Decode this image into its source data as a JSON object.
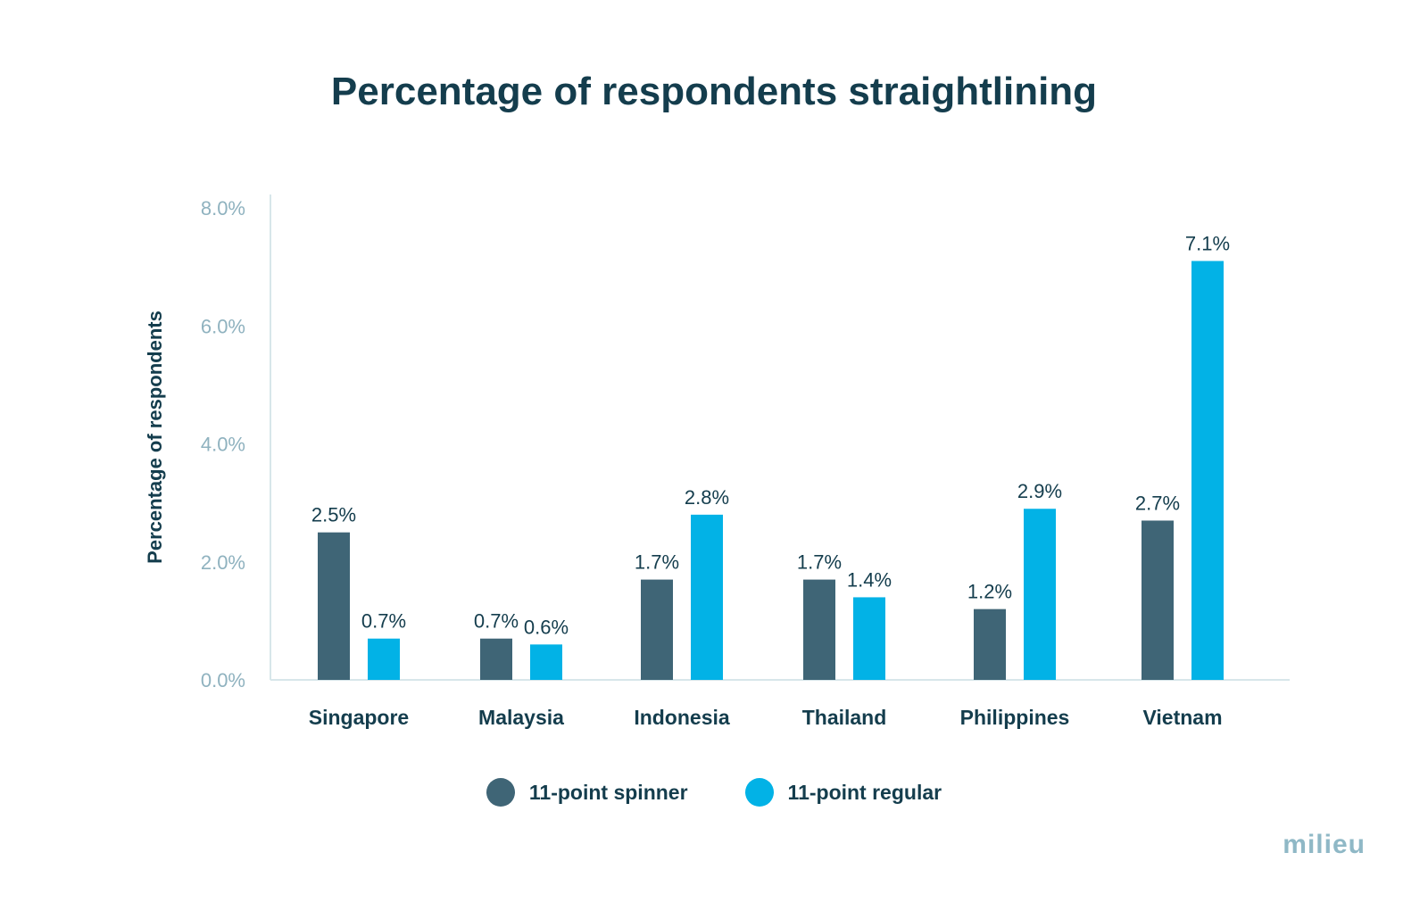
{
  "chart_data": {
    "type": "bar",
    "title": "Percentage of respondents straightlining",
    "xlabel": "",
    "ylabel": "Percentage of respondents",
    "ylim": [
      0,
      8
    ],
    "yticks": [
      "0.0%",
      "2.0%",
      "4.0%",
      "6.0%",
      "8.0%"
    ],
    "grid": false,
    "legend_position": "bottom",
    "categories": [
      "Singapore",
      "Malaysia",
      "Indonesia",
      "Thailand",
      "Philippines",
      "Vietnam"
    ],
    "series": [
      {
        "name": "11-point spinner",
        "color": "#3f6576",
        "values": [
          2.5,
          0.7,
          1.7,
          1.7,
          1.2,
          2.7
        ],
        "labels": [
          "2.5%",
          "0.7%",
          "1.7%",
          "1.7%",
          "1.2%",
          "2.7%"
        ]
      },
      {
        "name": "11-point regular",
        "color": "#02b2e6",
        "values": [
          0.7,
          0.6,
          2.8,
          1.4,
          2.9,
          7.1
        ],
        "labels": [
          "0.7%",
          "0.6%",
          "2.8%",
          "1.4%",
          "2.9%",
          "7.1%"
        ]
      }
    ]
  },
  "brand": {
    "logo_text": "milieu"
  }
}
